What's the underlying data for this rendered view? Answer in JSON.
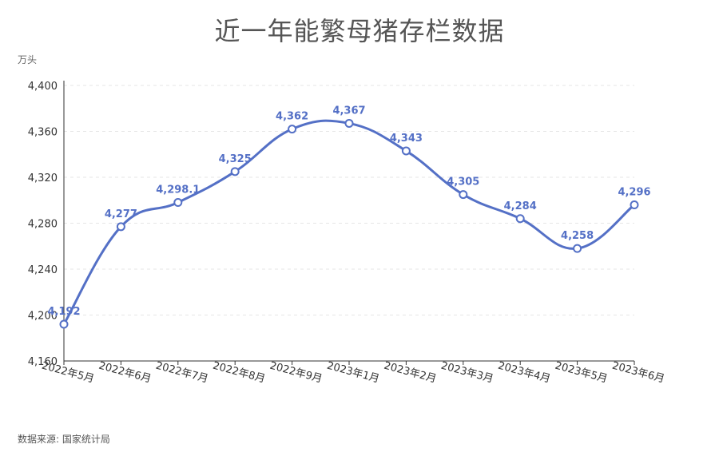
{
  "chart_data": {
    "type": "line",
    "title": "近一年能繁母猪存栏数据",
    "ylabel": "万头",
    "source": "数据来源: 国家统计局",
    "categories": [
      "2022年5月",
      "2022年6月",
      "2022年7月",
      "2022年8月",
      "2022年9月",
      "2023年1月",
      "2023年2月",
      "2023年3月",
      "2023年4月",
      "2023年5月",
      "2023年6月"
    ],
    "values": [
      4192,
      4277,
      4298.1,
      4325,
      4362,
      4367,
      4343,
      4305,
      4284,
      4258,
      4296
    ],
    "value_labels": [
      "4,192",
      "4,277",
      "4,298.1",
      "4,325",
      "4,362",
      "4,367",
      "4,343",
      "4,305",
      "4,284",
      "4,258",
      "4,296"
    ],
    "ylim": [
      4160,
      4400
    ],
    "yticks": [
      4160,
      4200,
      4240,
      4280,
      4320,
      4360,
      4400
    ],
    "ytick_labels": [
      "4,160",
      "4,200",
      "4,240",
      "4,280",
      "4,320",
      "4,360",
      "4,400"
    ],
    "grid": true,
    "line_color": "#5470c6",
    "smooth": true
  }
}
